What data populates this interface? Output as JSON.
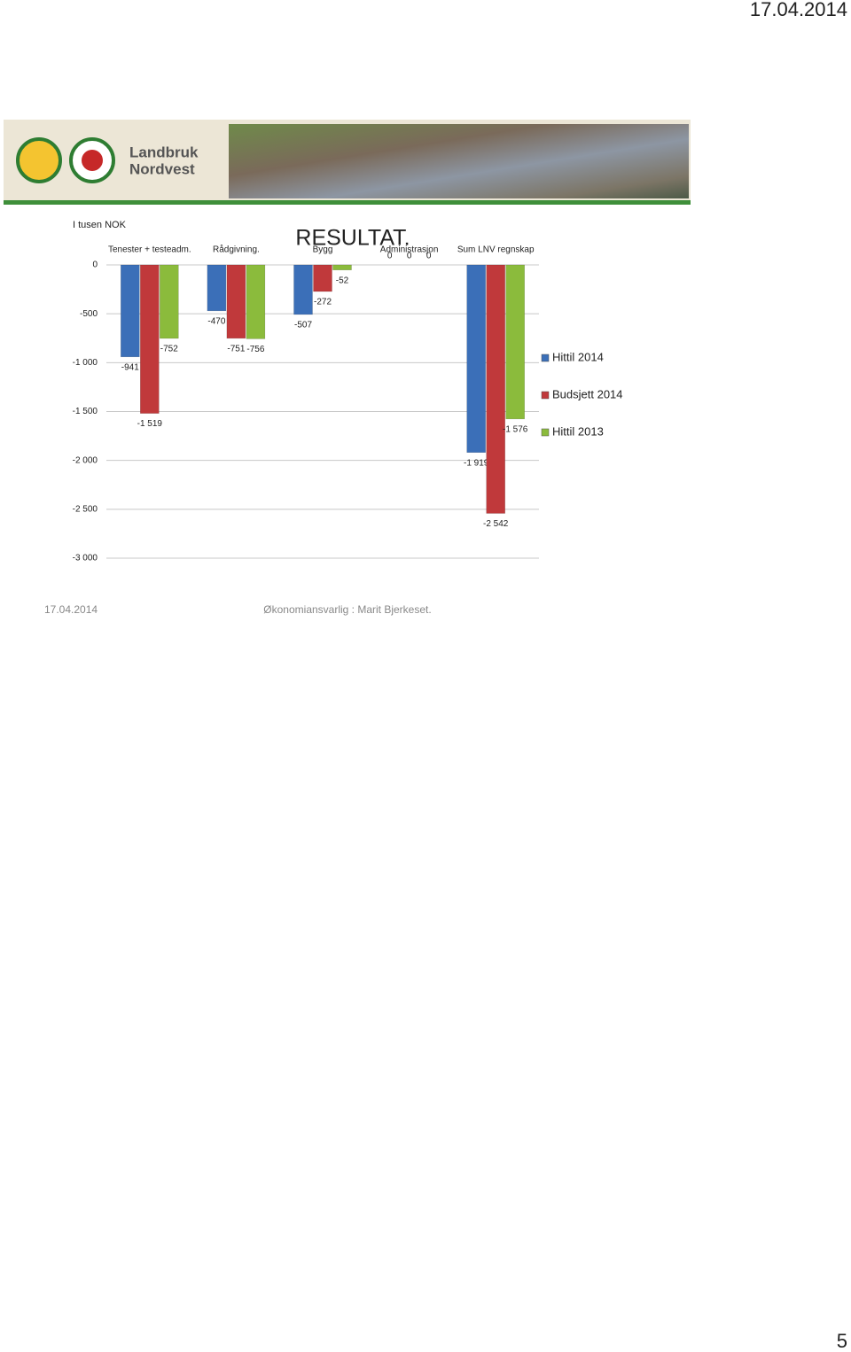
{
  "header": {
    "date": "17.04.2014"
  },
  "banner": {
    "lines": [
      "Landbruk",
      "Nordvest"
    ]
  },
  "chart_data": {
    "type": "bar",
    "title": "RESULTAT.",
    "y_label": "I tusen NOK",
    "categories": [
      "Tenester + testeadm.",
      "Rådgivning.",
      "Bygg",
      "Administrasjon",
      "Sum LNV regnskap"
    ],
    "series": [
      {
        "name": "Hittil 2014",
        "color": "#3b6fb8",
        "values": [
          -941,
          -470,
          -507,
          0,
          -1919
        ],
        "value_labels": [
          "-941",
          "-470",
          "-507",
          "0",
          "-1 919"
        ]
      },
      {
        "name": "Budsjett 2014",
        "color": "#c0393b",
        "values": [
          -1519,
          -751,
          -272,
          0,
          -2542
        ],
        "value_labels": [
          "-1 519",
          "-751",
          "-272",
          "0",
          "-2 542"
        ]
      },
      {
        "name": "Hittil 2013",
        "color": "#8bbb3c",
        "values": [
          -752,
          -756,
          -52,
          0,
          -1576
        ],
        "value_labels": [
          "-752",
          "-756",
          "-52",
          "0",
          "-1 576"
        ]
      }
    ],
    "ylim": [
      -3000,
      0
    ],
    "yticks": [
      0,
      -500,
      {
        "value": -1000,
        "label": "-1 000"
      },
      {
        "value": -1500,
        "label": "-1 500"
      },
      {
        "value": -2000,
        "label": "-2 000"
      },
      {
        "value": -2500,
        "label": "-2 500"
      },
      {
        "value": -3000,
        "label": "-3 000"
      }
    ],
    "grid": true,
    "legend": "right"
  },
  "footer": {
    "date": "17.04.2014",
    "author": "Økonomiansvarlig : Marit Bjerkeset."
  },
  "page_number": "5"
}
